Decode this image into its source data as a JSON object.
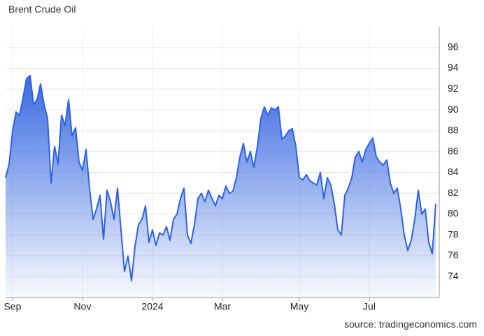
{
  "chart_data": {
    "type": "area",
    "title": "Brent Crude Oil",
    "source": "source: tradingeconomics.com",
    "color": "#2f62e0",
    "grid": true,
    "ylim": [
      72,
      98
    ],
    "yticks": [
      74,
      76,
      78,
      80,
      82,
      84,
      86,
      88,
      90,
      92,
      94,
      96
    ],
    "categories": [
      null,
      null,
      "Sep",
      null,
      null,
      null,
      null,
      null,
      null,
      null,
      null,
      null,
      null,
      null,
      null,
      null,
      null,
      null,
      null,
      null,
      null,
      null,
      "Nov",
      null,
      null,
      null,
      null,
      null,
      null,
      null,
      null,
      null,
      null,
      null,
      null,
      null,
      null,
      null,
      null,
      null,
      null,
      null,
      "2024",
      null,
      null,
      null,
      null,
      null,
      null,
      null,
      null,
      null,
      null,
      null,
      null,
      null,
      null,
      null,
      null,
      null,
      null,
      null,
      "Mar",
      null,
      null,
      null,
      null,
      null,
      null,
      null,
      null,
      null,
      null,
      null,
      null,
      null,
      null,
      null,
      null,
      null,
      null,
      null,
      null,
      null,
      "May",
      null,
      null,
      null,
      null,
      null,
      null,
      null,
      null,
      null,
      null,
      null,
      null,
      null,
      null,
      null,
      null,
      null,
      null,
      null,
      "Jul",
      null,
      null,
      null,
      null,
      null,
      null,
      null,
      null,
      null,
      null,
      null,
      null,
      null,
      null,
      null,
      null,
      null,
      null,
      null
    ],
    "values": [
      83.5,
      84.8,
      88,
      89.8,
      89.5,
      91.2,
      93,
      93.3,
      90.5,
      91,
      92.5,
      90.5,
      89.2,
      83,
      86.5,
      84.8,
      89.5,
      88.5,
      91,
      87.5,
      88.3,
      85,
      84.2,
      86.2,
      82.5,
      79.5,
      80.5,
      81.8,
      77.6,
      82.3,
      81.2,
      79.5,
      82.5,
      78.5,
      74.5,
      76,
      73.6,
      76.9,
      79,
      79.5,
      80.8,
      77.3,
      78.5,
      77,
      78.2,
      78,
      78.8,
      77.5,
      79.5,
      80,
      81.5,
      82.5,
      78,
      77.2,
      79,
      81.5,
      82,
      81.2,
      82.3,
      81.5,
      80.8,
      81.8,
      81.5,
      82.7,
      82,
      82.2,
      83.5,
      85.5,
      86.8,
      85,
      86,
      84.5,
      86.5,
      89.2,
      90.3,
      89.5,
      90.2,
      90,
      90.3,
      87.2,
      87.5,
      88,
      88.2,
      86.5,
      83.5,
      83.3,
      83.8,
      83.2,
      83,
      82.8,
      84,
      81.5,
      83.5,
      82.8,
      81,
      78.5,
      78,
      81.8,
      82.5,
      83.5,
      85.5,
      86,
      85,
      86.2,
      86.8,
      87.3,
      85.5,
      85,
      84.7,
      85.2,
      83,
      82,
      82.5,
      80.5,
      78,
      76.5,
      77.5,
      79.5,
      82.3,
      80,
      80.5,
      77.3,
      76.2,
      81
    ]
  }
}
